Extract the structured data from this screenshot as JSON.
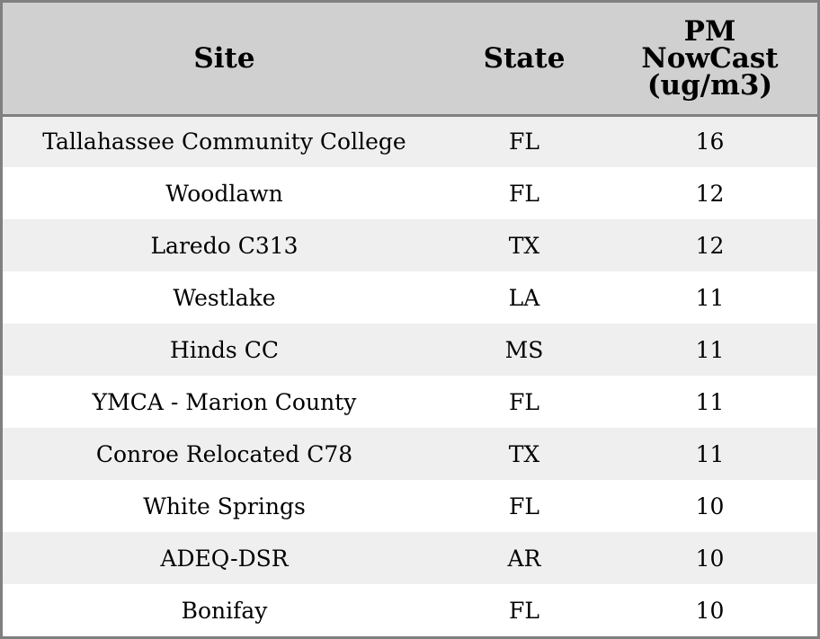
{
  "chart_data": {
    "type": "table",
    "columns": {
      "site": "Site",
      "state": "State",
      "pm": [
        "PM",
        "NowCast",
        "(ug/m3)"
      ]
    },
    "rows": [
      {
        "site": "Tallahassee Community College",
        "state": "FL",
        "pm": "16"
      },
      {
        "site": "Woodlawn",
        "state": "FL",
        "pm": "12"
      },
      {
        "site": "Laredo C313",
        "state": "TX",
        "pm": "12"
      },
      {
        "site": "Westlake",
        "state": "LA",
        "pm": "11"
      },
      {
        "site": "Hinds CC",
        "state": "MS",
        "pm": "11"
      },
      {
        "site": "YMCA - Marion County",
        "state": "FL",
        "pm": "11"
      },
      {
        "site": "Conroe Relocated C78",
        "state": "TX",
        "pm": "11"
      },
      {
        "site": "White Springs",
        "state": "FL",
        "pm": "10"
      },
      {
        "site": "ADEQ-DSR",
        "state": "AR",
        "pm": "10"
      },
      {
        "site": "Bonifay",
        "state": "FL",
        "pm": "10"
      }
    ]
  },
  "colors": {
    "header_bg": "#d0d0d0",
    "row_alt_bg": "#efefef",
    "row_bg": "#ffffff",
    "border": "#808080"
  }
}
